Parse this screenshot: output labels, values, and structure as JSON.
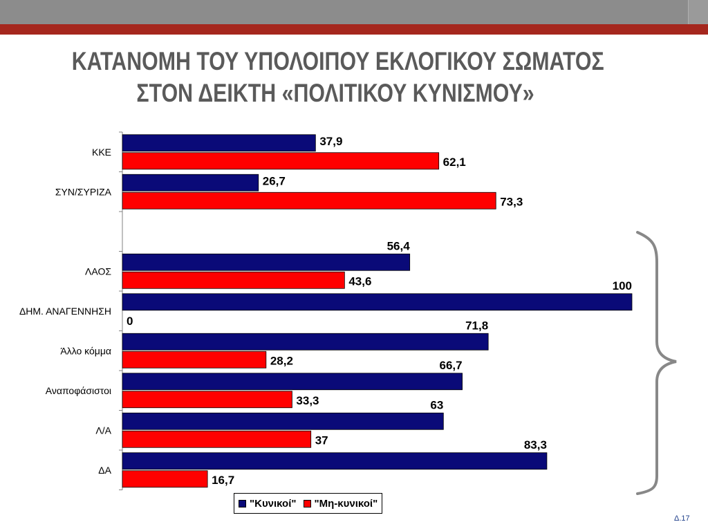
{
  "slide": {
    "title_lines": [
      "ΚΑΤΑΝΟΜΗ ΤΟΥ ΥΠΟΛΟΙΠΟΥ ΕΚΛΟΓΙΚΟΥ ΣΩΜΑΤΟΣ",
      "ΣΤΟΝ ΔΕΙΚΤΗ «ΠΟΛΙΤΙΚΟΥ ΚΥΝΙΣΜΟΥ»"
    ],
    "slide_number": "Δ.17"
  },
  "colors": {
    "series_1": "#0a0a78",
    "series_2": "#ff0000",
    "title": "#5a5a5a",
    "top_band": "#8c8c8c",
    "red_band": "#a5271e",
    "brace": "#888888"
  },
  "chart_data": {
    "type": "bar",
    "orientation": "horizontal",
    "categories": [
      "ΚΚΕ",
      "ΣΥΝ/ΣΥΡΙΖΑ",
      "",
      "ΛΑΟΣ",
      "ΔΗΜ. ΑΝΑΓΕΝΝΗΣΗ",
      "Άλλο κόμμα",
      "Αναποφάσιστοι",
      "Λ/Α",
      "ΔΑ"
    ],
    "series": [
      {
        "name": "\"Κυνικοί\"",
        "values": [
          37.9,
          26.7,
          null,
          56.4,
          100,
          71.8,
          66.7,
          63,
          83.3
        ],
        "labels": [
          "37,9",
          "26,7",
          "",
          "56,4",
          "100",
          "71,8",
          "66,7",
          "63",
          "83,3"
        ]
      },
      {
        "name": "\"Μη-κυνικοί\"",
        "values": [
          62.1,
          73.3,
          null,
          43.6,
          0,
          28.2,
          33.3,
          37,
          16.7
        ],
        "labels": [
          "62,1",
          "73,3",
          "",
          "43,6",
          "0",
          "28,2",
          "33,3",
          "37",
          "16,7"
        ]
      }
    ],
    "xlim": [
      0,
      100
    ],
    "grid": false,
    "legend": "bottom",
    "annotation": "curly brace grouping the categories from ΛΑΟΣ to ΔΑ"
  }
}
